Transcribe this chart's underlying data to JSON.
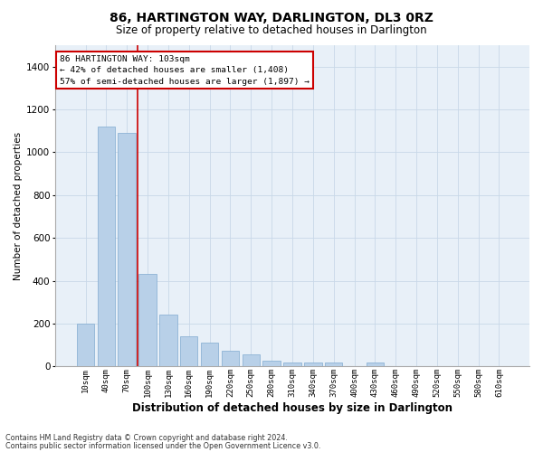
{
  "title": "86, HARTINGTON WAY, DARLINGTON, DL3 0RZ",
  "subtitle": "Size of property relative to detached houses in Darlington",
  "xlabel": "Distribution of detached houses by size in Darlington",
  "ylabel": "Number of detached properties",
  "footnote1": "Contains HM Land Registry data © Crown copyright and database right 2024.",
  "footnote2": "Contains public sector information licensed under the Open Government Licence v3.0.",
  "bar_color": "#b8d0e8",
  "bar_edge_color": "#80aad0",
  "background_color": "#e8f0f8",
  "annotation_box_color": "#cc0000",
  "annotation_text_line1": "86 HARTINGTON WAY: 103sqm",
  "annotation_text_line2": "← 42% of detached houses are smaller (1,408)",
  "annotation_text_line3": "57% of semi-detached houses are larger (1,897) →",
  "property_line_color": "#cc0000",
  "ylim": [
    0,
    1500
  ],
  "yticks": [
    0,
    200,
    400,
    600,
    800,
    1000,
    1200,
    1400
  ],
  "categories": [
    "10sqm",
    "40sqm",
    "70sqm",
    "100sqm",
    "130sqm",
    "160sqm",
    "190sqm",
    "220sqm",
    "250sqm",
    "280sqm",
    "310sqm",
    "340sqm",
    "370sqm",
    "400sqm",
    "430sqm",
    "460sqm",
    "490sqm",
    "520sqm",
    "550sqm",
    "580sqm",
    "610sqm"
  ],
  "values": [
    200,
    1120,
    1090,
    430,
    240,
    140,
    110,
    75,
    55,
    25,
    20,
    20,
    20,
    0,
    20,
    0,
    0,
    0,
    0,
    0,
    0
  ],
  "grid_color": "#c8d8e8",
  "title_fontsize": 10,
  "subtitle_fontsize": 8.5,
  "ylabel_fontsize": 7.5,
  "xlabel_fontsize": 8.5,
  "ytick_fontsize": 7.5,
  "xtick_fontsize": 6.5,
  "footnote_fontsize": 5.8
}
